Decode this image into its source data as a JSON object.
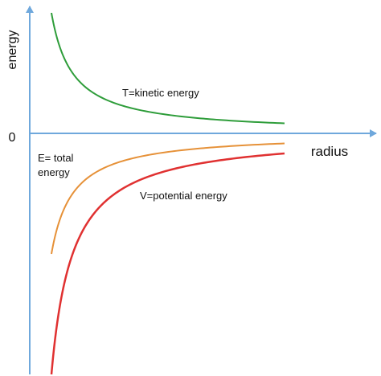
{
  "chart_data": {
    "type": "line",
    "title": "",
    "xlabel": "radius",
    "ylabel": "energy",
    "y_tick_labels": [
      "0"
    ],
    "grid": false,
    "legend": "none",
    "series": [
      {
        "name": "T=kinetic energy",
        "color": "#2e9d3a",
        "x": [
          1,
          1.2,
          1.5,
          2,
          3,
          4,
          6,
          8,
          10,
          12
        ],
        "y": [
          1,
          0.83,
          0.67,
          0.5,
          0.33,
          0.25,
          0.167,
          0.125,
          0.1,
          0.083
        ]
      },
      {
        "name": "E= total\nenergy",
        "color": "#e69138",
        "x": [
          1,
          1.2,
          1.5,
          2,
          3,
          4,
          6,
          8,
          10,
          12
        ],
        "y": [
          -1,
          -0.83,
          -0.67,
          -0.5,
          -0.33,
          -0.25,
          -0.167,
          -0.125,
          -0.1,
          -0.083
        ]
      },
      {
        "name": "V=potential energy",
        "color": "#e03131",
        "x": [
          1,
          1.2,
          1.5,
          2,
          3,
          4,
          6,
          8,
          10,
          12
        ],
        "y": [
          -2,
          -1.67,
          -1.33,
          -1,
          -0.67,
          -0.5,
          -0.33,
          -0.25,
          -0.2,
          -0.167
        ]
      }
    ],
    "axis_color": "#6fa8dc"
  }
}
